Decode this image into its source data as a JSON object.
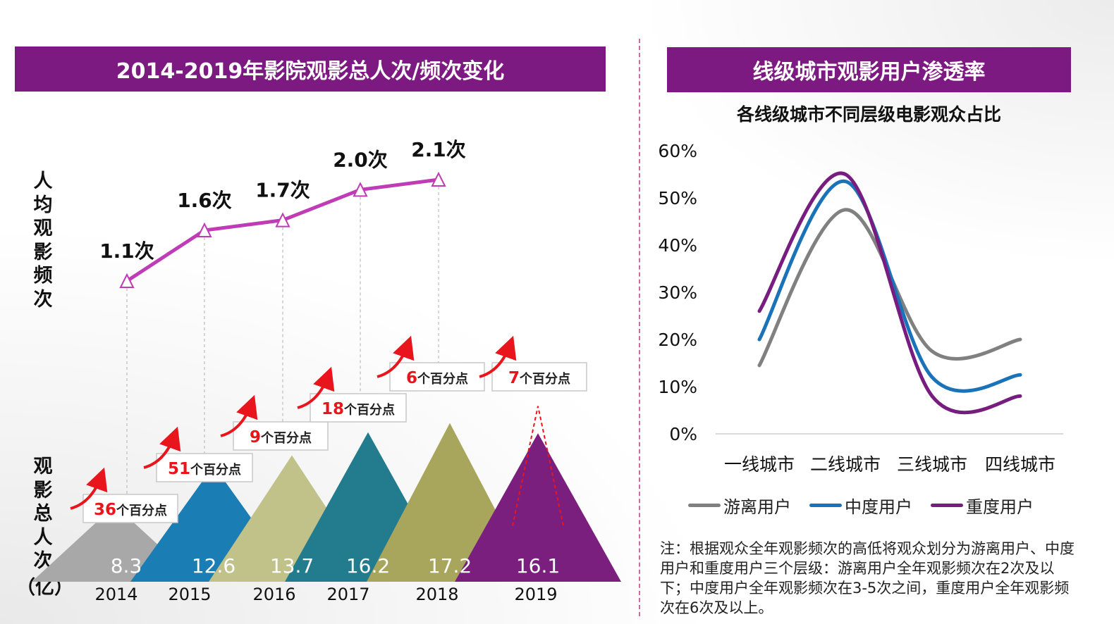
{
  "left_panel": {
    "title": "2014-2019年影院观影总人次/频次变化",
    "freq_axis_label": "人均观影频次",
    "total_axis_label": "观影总人次",
    "total_axis_unit": "（亿）"
  },
  "right_panel": {
    "title": "线级城市观影用户渗透率",
    "chart_title": "各线级城市不同层级电影观众占比",
    "note": "注：根据观众全年观影频次的高低将观众划分为游离用户、中度用户和重度用户三个层级：游离用户全年观影频次在2次及以下；中度用户全年观影频次在3-5次之间，重度用户全年观影频次在6次及以上。"
  },
  "colors": {
    "header": "#7d1a81",
    "freq_line": "#c03bb6",
    "growth_red": "#e8161c",
    "casual": "#808080",
    "medium": "#1a73b8",
    "heavy": "#781d80"
  },
  "chart_data": [
    {
      "type": "line",
      "title": "人均观影频次",
      "categories": [
        "2014",
        "2015",
        "2016",
        "2017",
        "2018"
      ],
      "values": [
        1.1,
        1.6,
        1.7,
        2.0,
        2.1
      ],
      "labels": [
        "1.1次",
        "1.6次",
        "1.7次",
        "2.0次",
        "2.1次"
      ]
    },
    {
      "type": "bar",
      "title": "观影总人次（亿）",
      "categories": [
        "2014",
        "2015",
        "2016",
        "2017",
        "2018",
        "2019"
      ],
      "values": [
        8.3,
        12.6,
        13.7,
        16.2,
        17.2,
        16.1
      ],
      "colors": [
        "#a8a8a8",
        "#1a7db4",
        "#c1c18a",
        "#237b8e",
        "#a8a65c",
        "#7b1f7e"
      ],
      "growth_numbers": [
        "36",
        "51",
        "9",
        "18",
        "6",
        "7"
      ],
      "growth_suffix": "个百分点"
    },
    {
      "type": "line",
      "title": "各线级城市不同层级电影观众占比",
      "categories": [
        "一线城市",
        "二线城市",
        "三线城市",
        "四线城市"
      ],
      "ylim": [
        0,
        60
      ],
      "yticks": [
        "0%",
        "10%",
        "20%",
        "30%",
        "40%",
        "50%",
        "60%"
      ],
      "series": [
        {
          "name": "游离用户",
          "values": [
            14.5,
            47.5,
            17.5,
            20
          ]
        },
        {
          "name": "中度用户",
          "values": [
            20,
            53.5,
            12,
            12.5
          ]
        },
        {
          "name": "重度用户",
          "values": [
            26,
            55,
            8,
            8
          ]
        }
      ]
    }
  ]
}
